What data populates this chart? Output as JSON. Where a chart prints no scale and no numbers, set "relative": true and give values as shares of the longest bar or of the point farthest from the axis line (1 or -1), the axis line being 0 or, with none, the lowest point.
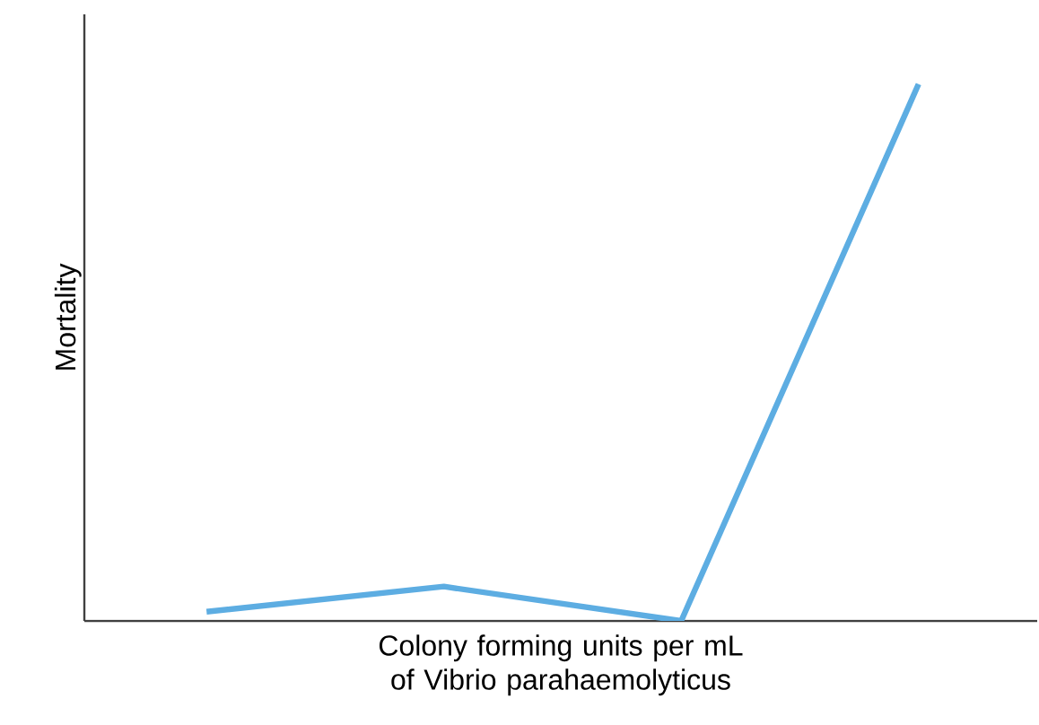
{
  "chart_data": {
    "type": "line",
    "relative": true,
    "xlabel": "Colony forming units per mL of Vibrio parahaemolyticus",
    "ylabel": "Mortality",
    "categories": [
      null,
      null,
      null,
      null
    ],
    "series": [
      {
        "color": "#5dade2",
        "values": [
          0.017,
          0.064,
          0,
          1
        ]
      }
    ]
  }
}
